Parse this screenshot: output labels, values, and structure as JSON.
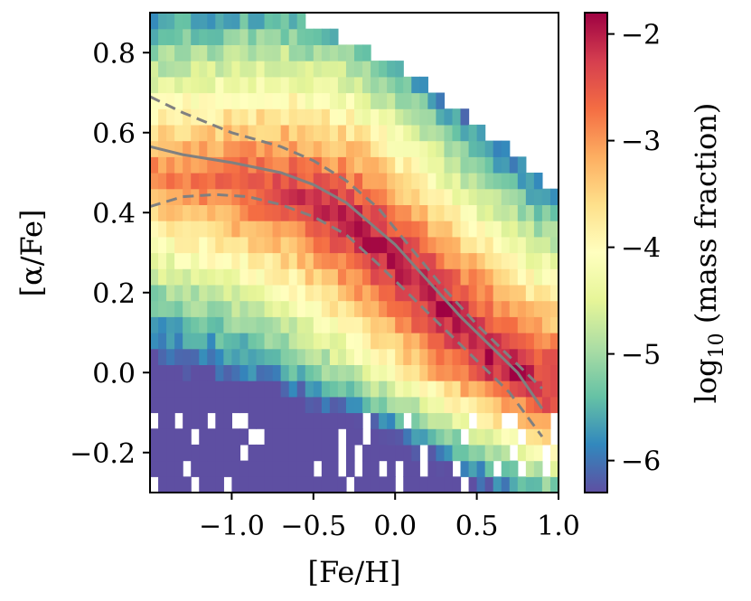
{
  "chart_data": {
    "type": "heatmap",
    "title": "",
    "xlabel": "[Fe/H]",
    "ylabel": "[α/Fe]",
    "xlim": [
      -1.5,
      1.0
    ],
    "ylim": [
      -0.3,
      0.9
    ],
    "xticks": [
      -1.0,
      -0.5,
      0.0,
      0.5,
      1.0
    ],
    "xtick_labels": [
      "−1.0",
      "−0.5",
      "0.0",
      "0.5",
      "1.0"
    ],
    "yticks": [
      -0.2,
      0.0,
      0.2,
      0.4,
      0.6,
      0.8
    ],
    "ytick_labels": [
      "−0.2",
      "0.0",
      "0.2",
      "0.4",
      "0.6",
      "0.8"
    ],
    "colorbar": {
      "label": "log10 (mass fraction)",
      "label_main": "log",
      "label_sub": "10",
      "label_rest": " (mass fraction)",
      "range": [
        -6.3,
        -1.8
      ],
      "ticks": [
        -2,
        -3,
        -4,
        -5,
        -6
      ],
      "tick_labels": [
        "−2",
        "−3",
        "−4",
        "−5",
        "−6"
      ],
      "colormap": "Spectral_r"
    },
    "density_model": {
      "feh_bin_width": 0.05,
      "alpha_bin_width": 0.04,
      "ridge_feh": [
        -1.5,
        -1.3,
        -1.0,
        -0.7,
        -0.5,
        -0.3,
        0.0,
        0.3,
        0.6,
        0.9
      ],
      "ridge_alpha": [
        0.5,
        0.49,
        0.48,
        0.46,
        0.42,
        0.38,
        0.28,
        0.16,
        0.04,
        -0.06
      ],
      "peak_log_mass_fraction": -1.9
    },
    "median": {
      "x": [
        -1.5,
        -1.3,
        -1.0,
        -0.7,
        -0.5,
        -0.3,
        0.0,
        0.2,
        0.4,
        0.6,
        0.75,
        0.9
      ],
      "y": [
        0.565,
        0.545,
        0.525,
        0.5,
        0.47,
        0.425,
        0.32,
        0.23,
        0.14,
        0.06,
        0.0,
        -0.09
      ]
    },
    "percentile_low": {
      "x": [
        -1.5,
        -1.3,
        -1.1,
        -0.9,
        -0.7,
        -0.5,
        -0.3,
        -0.1,
        0.1,
        0.3,
        0.5,
        0.7,
        0.9
      ],
      "y": [
        0.415,
        0.44,
        0.445,
        0.44,
        0.42,
        0.39,
        0.345,
        0.27,
        0.19,
        0.11,
        0.03,
        -0.05,
        -0.16
      ]
    },
    "percentile_high": {
      "x": [
        -1.5,
        -1.3,
        -1.0,
        -0.7,
        -0.5,
        -0.3,
        -0.1,
        0.1,
        0.3,
        0.5,
        0.7,
        0.9
      ],
      "y": [
        0.69,
        0.65,
        0.6,
        0.565,
        0.53,
        0.48,
        0.41,
        0.31,
        0.21,
        0.12,
        0.04,
        -0.04
      ]
    }
  }
}
